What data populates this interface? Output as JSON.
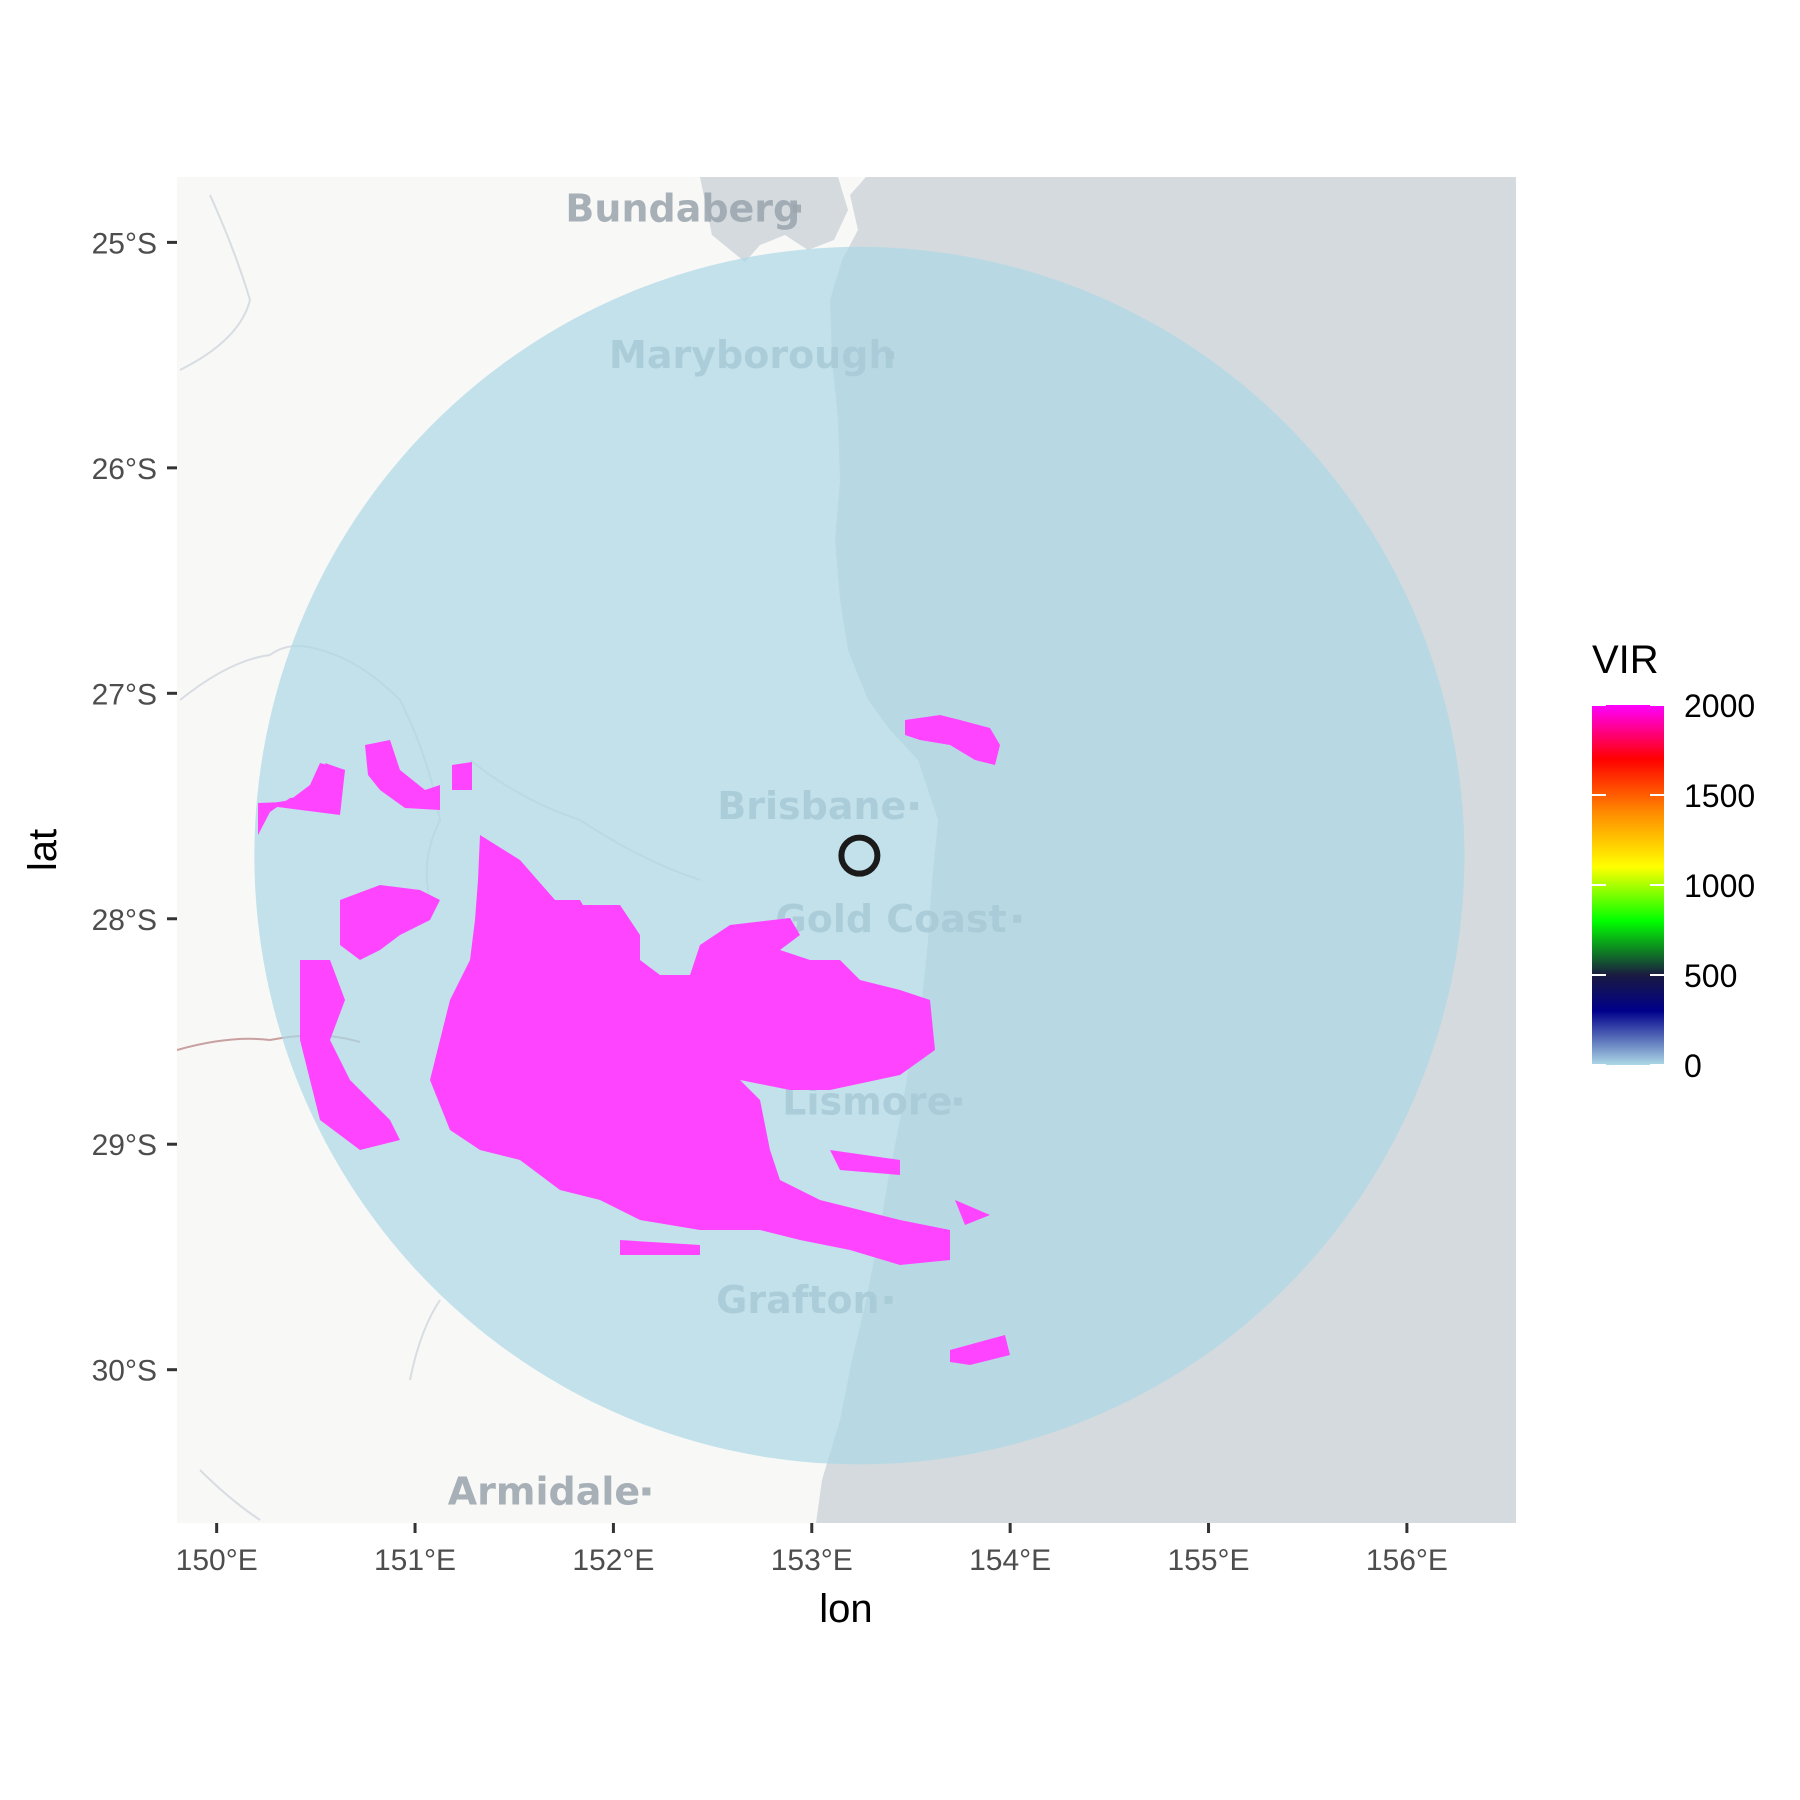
{
  "axes": {
    "xlabel": "lon",
    "ylabel": "lat",
    "x_ticks": [
      {
        "value": 150,
        "label": "150°E"
      },
      {
        "value": 151,
        "label": "151°E"
      },
      {
        "value": 152,
        "label": "152°E"
      },
      {
        "value": 153,
        "label": "153°E"
      },
      {
        "value": 154,
        "label": "154°E"
      },
      {
        "value": 155,
        "label": "155°E"
      },
      {
        "value": 156,
        "label": "156°E"
      }
    ],
    "y_ticks": [
      {
        "value": -25,
        "label": "25°S"
      },
      {
        "value": -26,
        "label": "26°S"
      },
      {
        "value": -27,
        "label": "27°S"
      },
      {
        "value": -28,
        "label": "28°S"
      },
      {
        "value": -29,
        "label": "29°S"
      },
      {
        "value": -30,
        "label": "30°S"
      }
    ],
    "xlim": [
      149.8,
      156.55
    ],
    "ylim": [
      -30.68,
      -24.71
    ]
  },
  "basemap": {
    "land_color": "#f8f8f7",
    "sea_color": "#d4dadd",
    "cities": [
      {
        "name": "Bundaberg",
        "lon": 152.35,
        "lat": -24.85
      },
      {
        "name": "Maryborough",
        "lon": 152.7,
        "lat": -25.5
      },
      {
        "name": "Brisbane",
        "lon": 153.0,
        "lat": -27.5
      },
      {
        "name": "Gold Coast",
        "lon": 153.4,
        "lat": -28.0
      },
      {
        "name": "Lismore",
        "lon": 153.28,
        "lat": -28.81
      },
      {
        "name": "Grafton",
        "lon": 152.93,
        "lat": -29.69
      },
      {
        "name": "Armidale",
        "lon": 151.65,
        "lat": -30.54
      }
    ]
  },
  "radar": {
    "site_lon": 153.24,
    "site_lat": -27.72,
    "lat_radius_deg": 2.7,
    "lon_radius_deg": 3.05,
    "background_color": "#add8e6"
  },
  "legend": {
    "title": "VIR",
    "labels": [
      "2000",
      "1500",
      "1000",
      "500",
      "0"
    ],
    "stops": [
      {
        "value": 0,
        "color": "#add8e6"
      },
      {
        "value": 300,
        "color": "#00008b"
      },
      {
        "value": 500,
        "color": "#1a1a40"
      },
      {
        "value": 800,
        "color": "#00ff00"
      },
      {
        "value": 1100,
        "color": "#ffff00"
      },
      {
        "value": 1400,
        "color": "#ff8c00"
      },
      {
        "value": 1700,
        "color": "#ff0000"
      },
      {
        "value": 2000,
        "color": "#ff00ff"
      }
    ]
  }
}
